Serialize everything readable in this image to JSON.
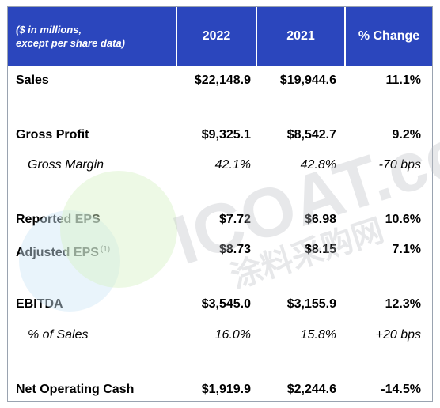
{
  "header": {
    "description_line1": "($ in millions,",
    "description_line2": "except per share data)",
    "col_2022": "2022",
    "col_2021": "2021",
    "col_change": "% Change"
  },
  "rows": [
    {
      "label": "Sales",
      "v2022": "$22,148.9",
      "v2021": "$19,944.6",
      "change": "11.1%"
    },
    {
      "label": "Gross Profit",
      "v2022": "$9,325.1",
      "v2021": "$8,542.7",
      "change": "9.2%"
    },
    {
      "label": "Gross Margin",
      "v2022": "42.1%",
      "v2021": "42.8%",
      "change": "-70 bps"
    },
    {
      "label": "Reported EPS",
      "v2022": "$7.72",
      "v2021": "$6.98",
      "change": "10.6%"
    },
    {
      "label": "Adjusted EPS",
      "footnote": "(1)",
      "v2022": "$8.73",
      "v2021": "$8.15",
      "change": "7.1%"
    },
    {
      "label": "EBITDA",
      "v2022": "$3,545.0",
      "v2021": "$3,155.9",
      "change": "12.3%"
    },
    {
      "label": "% of Sales",
      "v2022": "16.0%",
      "v2021": "15.8%",
      "change": "+20 bps"
    },
    {
      "label": "Net Operating Cash",
      "v2022": "$1,919.9",
      "v2021": "$2,244.6",
      "change": "-14.5%"
    }
  ],
  "watermark": {
    "main": "ICOAT.cc",
    "sub": "涂料采购网"
  },
  "colors": {
    "header_bg": "#2b46bd",
    "header_text": "#ffffff"
  }
}
